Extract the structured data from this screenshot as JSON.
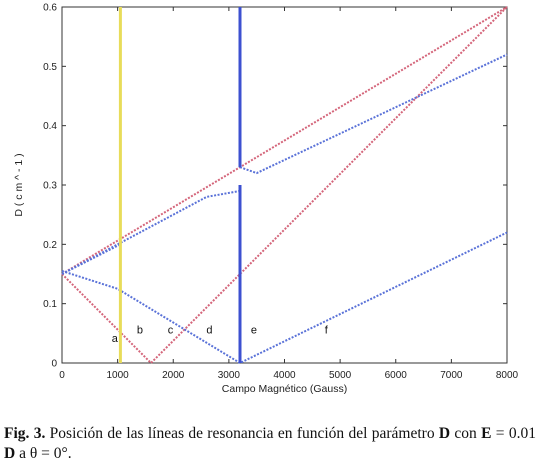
{
  "chart_data": {
    "type": "line",
    "xlabel": "Campo Magnético (Gauss)",
    "ylabel": "D   ( c m ^ - 1 )",
    "xlim": [
      0,
      8000
    ],
    "ylim": [
      0,
      0.6
    ],
    "xticks": [
      "0",
      "1000",
      "2000",
      "3000",
      "4000",
      "5000",
      "6000",
      "7000",
      "8000"
    ],
    "yticks": [
      "0",
      "0.1",
      "0.2",
      "0.3",
      "0.4",
      "0.5",
      "0.6"
    ],
    "grid": false,
    "series": [
      {
        "color": "#d4657a",
        "style": "dotted",
        "points": [
          [
            0,
            0.15
          ],
          [
            1600,
            0
          ],
          [
            8000,
            0.6
          ]
        ]
      },
      {
        "color": "#d4657a",
        "style": "dotted",
        "points": [
          [
            0,
            0.15
          ],
          [
            8000,
            0.6
          ]
        ]
      },
      {
        "color": "#5a72d8",
        "style": "dotted",
        "points": [
          [
            0,
            0.15
          ],
          [
            1050,
            0.2
          ]
        ]
      },
      {
        "color": "#5a72d8",
        "style": "dotted",
        "points": [
          [
            0,
            0.15
          ],
          [
            2600,
            0.28
          ],
          [
            3200,
            0.29
          ]
        ]
      },
      {
        "color": "#5a72d8",
        "style": "dotted",
        "points": [
          [
            3200,
            0.33
          ],
          [
            3500,
            0.32
          ],
          [
            8000,
            0.52
          ]
        ]
      },
      {
        "color": "#5a72d8",
        "style": "dotted",
        "points": [
          [
            0,
            0.155
          ],
          [
            1000,
            0.125
          ],
          [
            3200,
            0
          ],
          [
            8000,
            0.22
          ]
        ]
      },
      {
        "color": "#e8dc5a",
        "style": "solid",
        "points": [
          [
            1050,
            0
          ],
          [
            1050,
            0.6
          ]
        ]
      },
      {
        "color": "#3c50d0",
        "style": "solid",
        "points": [
          [
            3200,
            0
          ],
          [
            3200,
            0.3
          ]
        ]
      },
      {
        "color": "#3c50d0",
        "style": "solid",
        "points": [
          [
            3200,
            0.33
          ],
          [
            3200,
            0.6
          ]
        ]
      }
    ],
    "annotations": [
      {
        "text": "a",
        "x": 950,
        "y": 0.035
      },
      {
        "text": "b",
        "x": 1400,
        "y": 0.05
      },
      {
        "text": "c",
        "x": 1950,
        "y": 0.05
      },
      {
        "text": "d",
        "x": 2650,
        "y": 0.05
      },
      {
        "text": "e",
        "x": 3450,
        "y": 0.05
      },
      {
        "text": "f",
        "x": 4750,
        "y": 0.05
      }
    ]
  },
  "caption": {
    "fig_label": "Fig. 3.",
    "text1": " Posición de las líneas de resonancia en función del parámetro ",
    "d1": "D",
    "text2": " con ",
    "e": "E",
    "text3": " = 0.01 ",
    "d2": "D",
    "text4": " a θ = 0°."
  }
}
